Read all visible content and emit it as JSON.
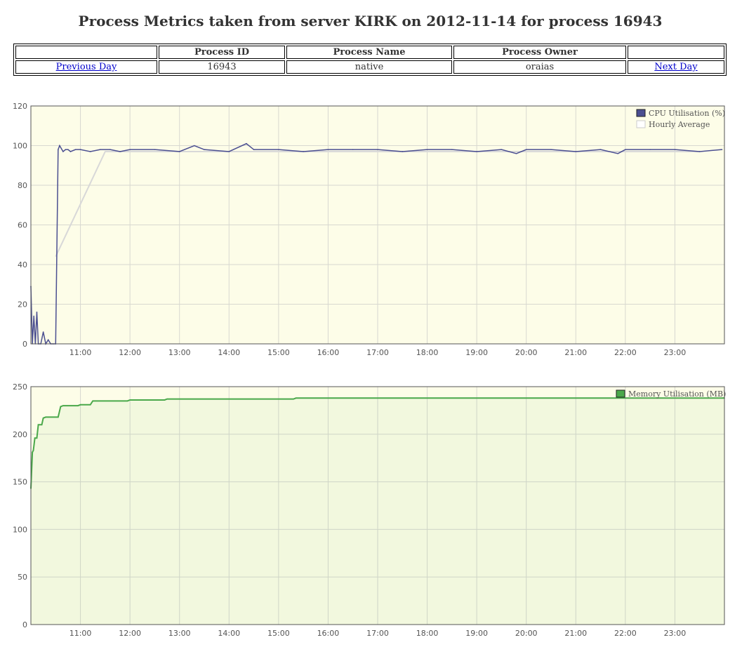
{
  "page": {
    "title": "Process Metrics taken from server KIRK on 2012-11-14 for process 16943"
  },
  "info_table": {
    "headers": [
      "",
      "Process ID",
      "Process Name",
      "Process Owner",
      ""
    ],
    "row": {
      "prev_link": "Previous Day",
      "process_id": "16943",
      "process_name": "native",
      "process_owner": "oraias",
      "next_link": "Next Day"
    }
  },
  "colors": {
    "plot_background": "#fdfde8",
    "grid": "#d8d8d0",
    "cpu_series": "#4b4f91",
    "hourly_average": "#d8d8d8",
    "memory_series": "#4aa84a"
  },
  "chart_data": [
    {
      "type": "line",
      "x_axis": {
        "unit": "hour",
        "range": [
          10.0,
          24.0
        ],
        "ticks": [
          "11:00",
          "12:00",
          "13:00",
          "14:00",
          "15:00",
          "16:00",
          "17:00",
          "18:00",
          "19:00",
          "20:00",
          "21:00",
          "22:00",
          "23:00"
        ]
      },
      "y_axis": {
        "range": [
          0,
          120
        ],
        "ticks": [
          "0",
          "20",
          "40",
          "60",
          "80",
          "100",
          "120"
        ]
      },
      "grid": true,
      "legend_position": "top-right",
      "series": [
        {
          "name": "CPU Utilisation (%)",
          "x": [
            10.0,
            10.03,
            10.06,
            10.09,
            10.12,
            10.15,
            10.2,
            10.25,
            10.3,
            10.35,
            10.4,
            10.45,
            10.5,
            10.55,
            10.58,
            10.65,
            10.7,
            10.75,
            10.8,
            10.9,
            11.0,
            11.2,
            11.4,
            11.6,
            11.8,
            12.0,
            12.5,
            13.0,
            13.3,
            13.5,
            14.0,
            14.35,
            14.5,
            15.0,
            15.5,
            16.0,
            16.5,
            17.0,
            17.5,
            18.0,
            18.5,
            19.0,
            19.5,
            19.8,
            20.0,
            20.5,
            21.0,
            21.5,
            21.85,
            22.0,
            22.5,
            23.0,
            23.5,
            23.95
          ],
          "y": [
            29,
            0,
            14,
            0,
            16,
            0,
            0,
            6,
            0,
            2,
            0,
            0,
            0,
            98,
            100,
            97,
            98,
            98,
            97,
            98,
            98,
            97,
            98,
            98,
            97,
            98,
            98,
            97,
            100,
            98,
            97,
            101,
            98,
            98,
            97,
            98,
            98,
            98,
            97,
            98,
            98,
            97,
            98,
            96,
            98,
            98,
            97,
            98,
            96,
            98,
            98,
            98,
            97,
            98
          ]
        },
        {
          "name": "Hourly Average",
          "x": [
            10.5,
            11.5,
            12.5,
            13.5,
            14.5,
            15.5,
            16.5,
            17.5,
            18.5,
            19.5,
            20.5,
            21.5,
            22.5,
            23.5
          ],
          "y": [
            44,
            97,
            97,
            97,
            97,
            97,
            97,
            97,
            97,
            97,
            97,
            97,
            97,
            97
          ]
        }
      ]
    },
    {
      "type": "area",
      "x_axis": {
        "unit": "hour",
        "range": [
          10.0,
          24.0
        ],
        "ticks": [
          "11:00",
          "12:00",
          "13:00",
          "14:00",
          "15:00",
          "16:00",
          "17:00",
          "18:00",
          "19:00",
          "20:00",
          "21:00",
          "22:00",
          "23:00"
        ]
      },
      "y_axis": {
        "range": [
          0,
          250
        ],
        "ticks": [
          "0",
          "50",
          "100",
          "150",
          "200",
          "250"
        ]
      },
      "grid": true,
      "legend_position": "top-right",
      "series": [
        {
          "name": "Memory Utilisation (MB)",
          "x": [
            10.0,
            10.03,
            10.05,
            10.08,
            10.12,
            10.15,
            10.22,
            10.25,
            10.3,
            10.35,
            10.55,
            10.6,
            10.65,
            10.95,
            11.0,
            11.2,
            11.25,
            11.95,
            12.0,
            12.7,
            12.75,
            13.95,
            14.0,
            15.3,
            15.35,
            22.0,
            24.0
          ],
          "y": [
            143,
            181,
            183,
            196,
            196,
            210,
            210,
            217,
            218,
            218,
            218,
            229,
            230,
            230,
            231,
            231,
            235,
            235,
            236,
            236,
            237,
            237,
            237,
            237,
            238,
            238,
            238
          ]
        }
      ]
    }
  ]
}
